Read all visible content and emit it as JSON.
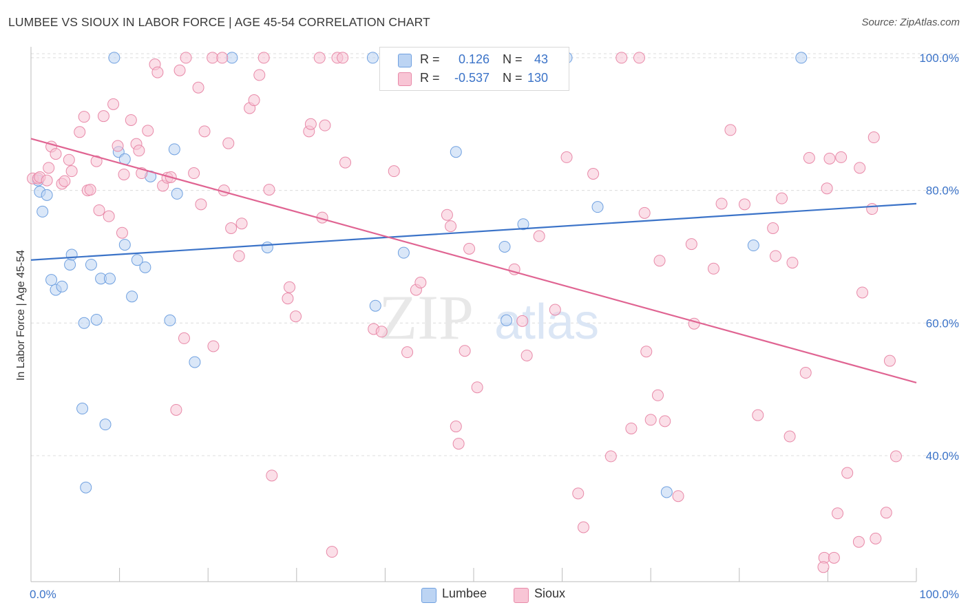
{
  "title": "LUMBEE VS SIOUX IN LABOR FORCE | AGE 45-54 CORRELATION CHART",
  "source": "Source: ZipAtlas.com",
  "watermark": {
    "part1": "ZIP",
    "part2": "atlas"
  },
  "legend": {
    "rows": [
      {
        "r_label": "R =",
        "r_value": "0.126",
        "n_label": "N =",
        "n_value": "43",
        "color": "#6fa0e0",
        "fill": "#bcd4f3"
      },
      {
        "r_label": "R =",
        "r_value": "-0.537",
        "n_label": "N =",
        "n_value": "130",
        "color": "#e889a8",
        "fill": "#f8c5d5"
      }
    ]
  },
  "bottom_legend": [
    {
      "label": "Lumbee",
      "fill": "#bcd4f3",
      "border": "#6fa0e0"
    },
    {
      "label": "Sioux",
      "fill": "#f8c5d5",
      "border": "#e889a8"
    }
  ],
  "chart_data": {
    "type": "scatter",
    "title": "LUMBEE VS SIOUX IN LABOR FORCE | AGE 45-54 CORRELATION CHART",
    "xlabel": "",
    "ylabel": "In Labor Force | Age 45-54",
    "xlim": [
      0,
      100
    ],
    "ylim": [
      21,
      103
    ],
    "x_tick_labels": [
      "0.0%",
      "100.0%"
    ],
    "y_ticks": [
      40,
      60,
      80,
      100
    ],
    "y_tick_labels": [
      "40.0%",
      "60.0%",
      "80.0%",
      "100.0%"
    ],
    "grid": true,
    "legend_position": "top-center",
    "series": [
      {
        "name": "Lumbee",
        "color": "#3b73c8",
        "marker_fill": "#bcd4f3",
        "marker_edge": "#6fa0e0",
        "trend": {
          "x": [
            0,
            100
          ],
          "y": [
            69.5,
            78.0
          ]
        },
        "points": [
          [
            0.8,
            81.5
          ],
          [
            1.0,
            79.8
          ],
          [
            1.3,
            76.8
          ],
          [
            1.8,
            79.3
          ],
          [
            2.3,
            66.5
          ],
          [
            2.8,
            65.0
          ],
          [
            3.5,
            65.5
          ],
          [
            4.4,
            68.8
          ],
          [
            4.6,
            70.3
          ],
          [
            5.8,
            47.1
          ],
          [
            6.0,
            60.0
          ],
          [
            6.2,
            35.2
          ],
          [
            6.8,
            68.8
          ],
          [
            7.4,
            60.5
          ],
          [
            7.9,
            66.7
          ],
          [
            8.4,
            44.7
          ],
          [
            8.9,
            66.7
          ],
          [
            9.4,
            100.0
          ],
          [
            9.9,
            85.8
          ],
          [
            10.6,
            84.7
          ],
          [
            10.6,
            71.8
          ],
          [
            11.4,
            64.0
          ],
          [
            12.0,
            69.5
          ],
          [
            12.9,
            68.4
          ],
          [
            13.5,
            82.1
          ],
          [
            15.7,
            60.4
          ],
          [
            16.2,
            86.2
          ],
          [
            16.5,
            79.5
          ],
          [
            18.5,
            54.1
          ],
          [
            22.7,
            100.0
          ],
          [
            26.7,
            71.4
          ],
          [
            38.6,
            100.0
          ],
          [
            38.9,
            62.6
          ],
          [
            42.1,
            70.6
          ],
          [
            48.0,
            85.8
          ],
          [
            53.5,
            71.5
          ],
          [
            55.6,
            74.9
          ],
          [
            60.5,
            100.0
          ],
          [
            64.0,
            77.5
          ],
          [
            71.8,
            34.5
          ],
          [
            81.6,
            71.7
          ],
          [
            87.0,
            100.0
          ],
          [
            53.7,
            60.4
          ]
        ]
      },
      {
        "name": "Sioux",
        "color": "#e06492",
        "marker_fill": "#f8c5d5",
        "marker_edge": "#e889a8",
        "trend": {
          "x": [
            0,
            100
          ],
          "y": [
            87.8,
            51.0
          ]
        },
        "points": [
          [
            0.2,
            81.8
          ],
          [
            0.8,
            81.8
          ],
          [
            1.0,
            82.0
          ],
          [
            1.8,
            81.5
          ],
          [
            2.0,
            83.4
          ],
          [
            2.3,
            86.6
          ],
          [
            2.8,
            85.5
          ],
          [
            3.5,
            81.0
          ],
          [
            3.8,
            81.4
          ],
          [
            4.3,
            84.6
          ],
          [
            4.6,
            82.9
          ],
          [
            5.5,
            88.8
          ],
          [
            6.0,
            91.1
          ],
          [
            6.4,
            80.0
          ],
          [
            6.7,
            80.1
          ],
          [
            7.4,
            84.4
          ],
          [
            7.7,
            77.0
          ],
          [
            8.2,
            91.2
          ],
          [
            8.8,
            76.1
          ],
          [
            9.3,
            93.0
          ],
          [
            9.8,
            86.7
          ],
          [
            10.3,
            73.6
          ],
          [
            10.5,
            82.4
          ],
          [
            11.3,
            90.6
          ],
          [
            11.9,
            87.0
          ],
          [
            12.2,
            86.0
          ],
          [
            12.5,
            82.6
          ],
          [
            13.2,
            89.0
          ],
          [
            14.0,
            99.0
          ],
          [
            14.3,
            97.8
          ],
          [
            14.9,
            80.7
          ],
          [
            15.4,
            81.9
          ],
          [
            15.8,
            82.0
          ],
          [
            16.4,
            46.9
          ],
          [
            16.8,
            98.1
          ],
          [
            17.3,
            57.7
          ],
          [
            17.5,
            100.0
          ],
          [
            18.4,
            82.6
          ],
          [
            18.9,
            95.5
          ],
          [
            19.2,
            77.9
          ],
          [
            19.6,
            88.9
          ],
          [
            20.5,
            100.0
          ],
          [
            20.6,
            56.5
          ],
          [
            21.6,
            100.0
          ],
          [
            21.8,
            80.0
          ],
          [
            22.3,
            87.1
          ],
          [
            22.6,
            74.3
          ],
          [
            23.5,
            70.1
          ],
          [
            23.8,
            75.0
          ],
          [
            24.7,
            92.4
          ],
          [
            25.2,
            93.6
          ],
          [
            25.8,
            97.4
          ],
          [
            26.3,
            100.0
          ],
          [
            26.9,
            80.1
          ],
          [
            27.2,
            37.0
          ],
          [
            29.0,
            63.7
          ],
          [
            29.2,
            65.4
          ],
          [
            29.9,
            61.0
          ],
          [
            31.4,
            88.9
          ],
          [
            31.6,
            90.0
          ],
          [
            32.6,
            100.0
          ],
          [
            32.9,
            75.9
          ],
          [
            33.2,
            89.8
          ],
          [
            34.0,
            25.5
          ],
          [
            34.6,
            100.0
          ],
          [
            35.2,
            100.0
          ],
          [
            35.5,
            84.2
          ],
          [
            38.7,
            59.1
          ],
          [
            39.6,
            58.7
          ],
          [
            41.0,
            82.9
          ],
          [
            42.5,
            55.6
          ],
          [
            43.5,
            65.0
          ],
          [
            44.0,
            66.1
          ],
          [
            47.0,
            76.3
          ],
          [
            47.4,
            74.6
          ],
          [
            48.0,
            44.4
          ],
          [
            48.3,
            41.8
          ],
          [
            49.0,
            55.8
          ],
          [
            49.5,
            71.2
          ],
          [
            50.4,
            50.3
          ],
          [
            54.6,
            68.1
          ],
          [
            55.5,
            60.3
          ],
          [
            56.0,
            55.1
          ],
          [
            57.4,
            73.1
          ],
          [
            58.5,
            100.0
          ],
          [
            59.2,
            62.0
          ],
          [
            60.5,
            85.0
          ],
          [
            61.8,
            34.3
          ],
          [
            62.4,
            29.2
          ],
          [
            63.5,
            82.5
          ],
          [
            66.7,
            100.0
          ],
          [
            68.7,
            100.0
          ],
          [
            65.5,
            39.9
          ],
          [
            67.8,
            44.1
          ],
          [
            69.3,
            76.6
          ],
          [
            69.5,
            55.7
          ],
          [
            70.0,
            45.4
          ],
          [
            70.8,
            49.1
          ],
          [
            71.0,
            69.4
          ],
          [
            71.6,
            45.2
          ],
          [
            73.1,
            33.9
          ],
          [
            74.6,
            71.9
          ],
          [
            74.9,
            59.9
          ],
          [
            77.1,
            68.2
          ],
          [
            78.0,
            78.0
          ],
          [
            79.0,
            89.1
          ],
          [
            80.6,
            77.9
          ],
          [
            82.1,
            46.1
          ],
          [
            83.8,
            74.3
          ],
          [
            84.1,
            70.1
          ],
          [
            84.8,
            78.8
          ],
          [
            85.7,
            42.9
          ],
          [
            86.0,
            69.1
          ],
          [
            87.5,
            52.5
          ],
          [
            87.9,
            84.9
          ],
          [
            89.6,
            24.6
          ],
          [
            89.9,
            80.3
          ],
          [
            90.7,
            24.6
          ],
          [
            91.1,
            31.3
          ],
          [
            90.2,
            84.8
          ],
          [
            92.2,
            37.4
          ],
          [
            93.6,
            83.4
          ],
          [
            93.9,
            64.6
          ],
          [
            93.5,
            27.0
          ],
          [
            95.0,
            77.2
          ],
          [
            95.2,
            88.0
          ],
          [
            95.4,
            27.5
          ],
          [
            96.6,
            31.4
          ],
          [
            97.0,
            54.3
          ],
          [
            97.7,
            39.9
          ],
          [
            89.5,
            23.2
          ],
          [
            91.5,
            85.0
          ]
        ]
      }
    ]
  }
}
